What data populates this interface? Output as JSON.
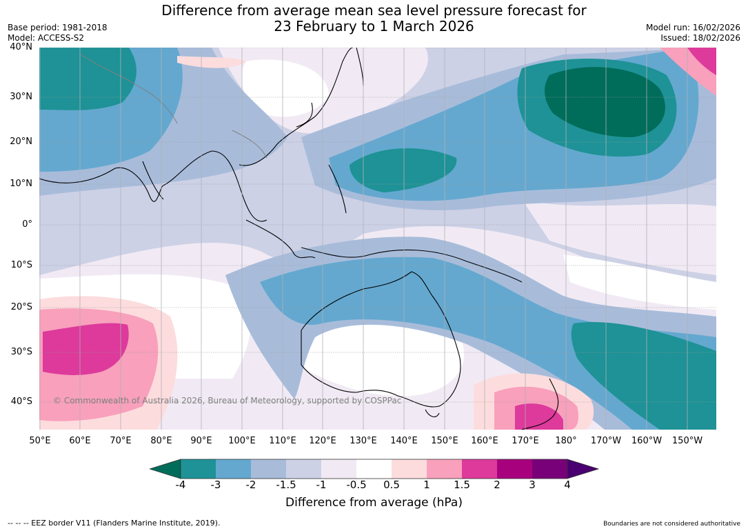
{
  "title_line1": "Difference from average mean sea level pressure forecast for",
  "title_line2": "23 February to 1 March 2026",
  "meta_left": [
    "Base period: 1981-2018",
    "Model: ACCESS-S2"
  ],
  "meta_right": [
    "Model run: 16/02/2026",
    "Issued: 18/02/2026"
  ],
  "lat_labels": [
    "40°N",
    "30°N",
    "20°N",
    "10°N",
    "0°",
    "10°S",
    "20°S",
    "30°S",
    "40°S"
  ],
  "lon_labels": [
    "50°E",
    "60°E",
    "70°E",
    "80°E",
    "90°E",
    "100°E",
    "110°E",
    "120°E",
    "130°E",
    "140°E",
    "150°E",
    "160°E",
    "170°E",
    "180°",
    "170°W",
    "160°W",
    "150°W"
  ],
  "copyright": "© Commonwealth of Australia 2026, Bureau of Meteorology, supported by COSPPac",
  "colorbar": {
    "label": "Difference from average (hPa)",
    "ticks": [
      "-4",
      "-3",
      "-2",
      "-1.5",
      "-1",
      "-0.5",
      "0.5",
      "1",
      "1.5",
      "2",
      "3",
      "4"
    ],
    "colors": [
      "#006c5a",
      "#1e9296",
      "#64a8cf",
      "#a8bcda",
      "#cdd1e6",
      "#f1eaf4",
      "#ffffff",
      "#fddcdd",
      "#f8a0bc",
      "#dd3a9b",
      "#a8017e",
      "#78017a",
      "#4a0070"
    ]
  },
  "footer_left": "--  --  -- EEZ border V11 (Flanders Marine Institute, 2019).",
  "footer_right": "Boundaries are not considered authoritative"
}
